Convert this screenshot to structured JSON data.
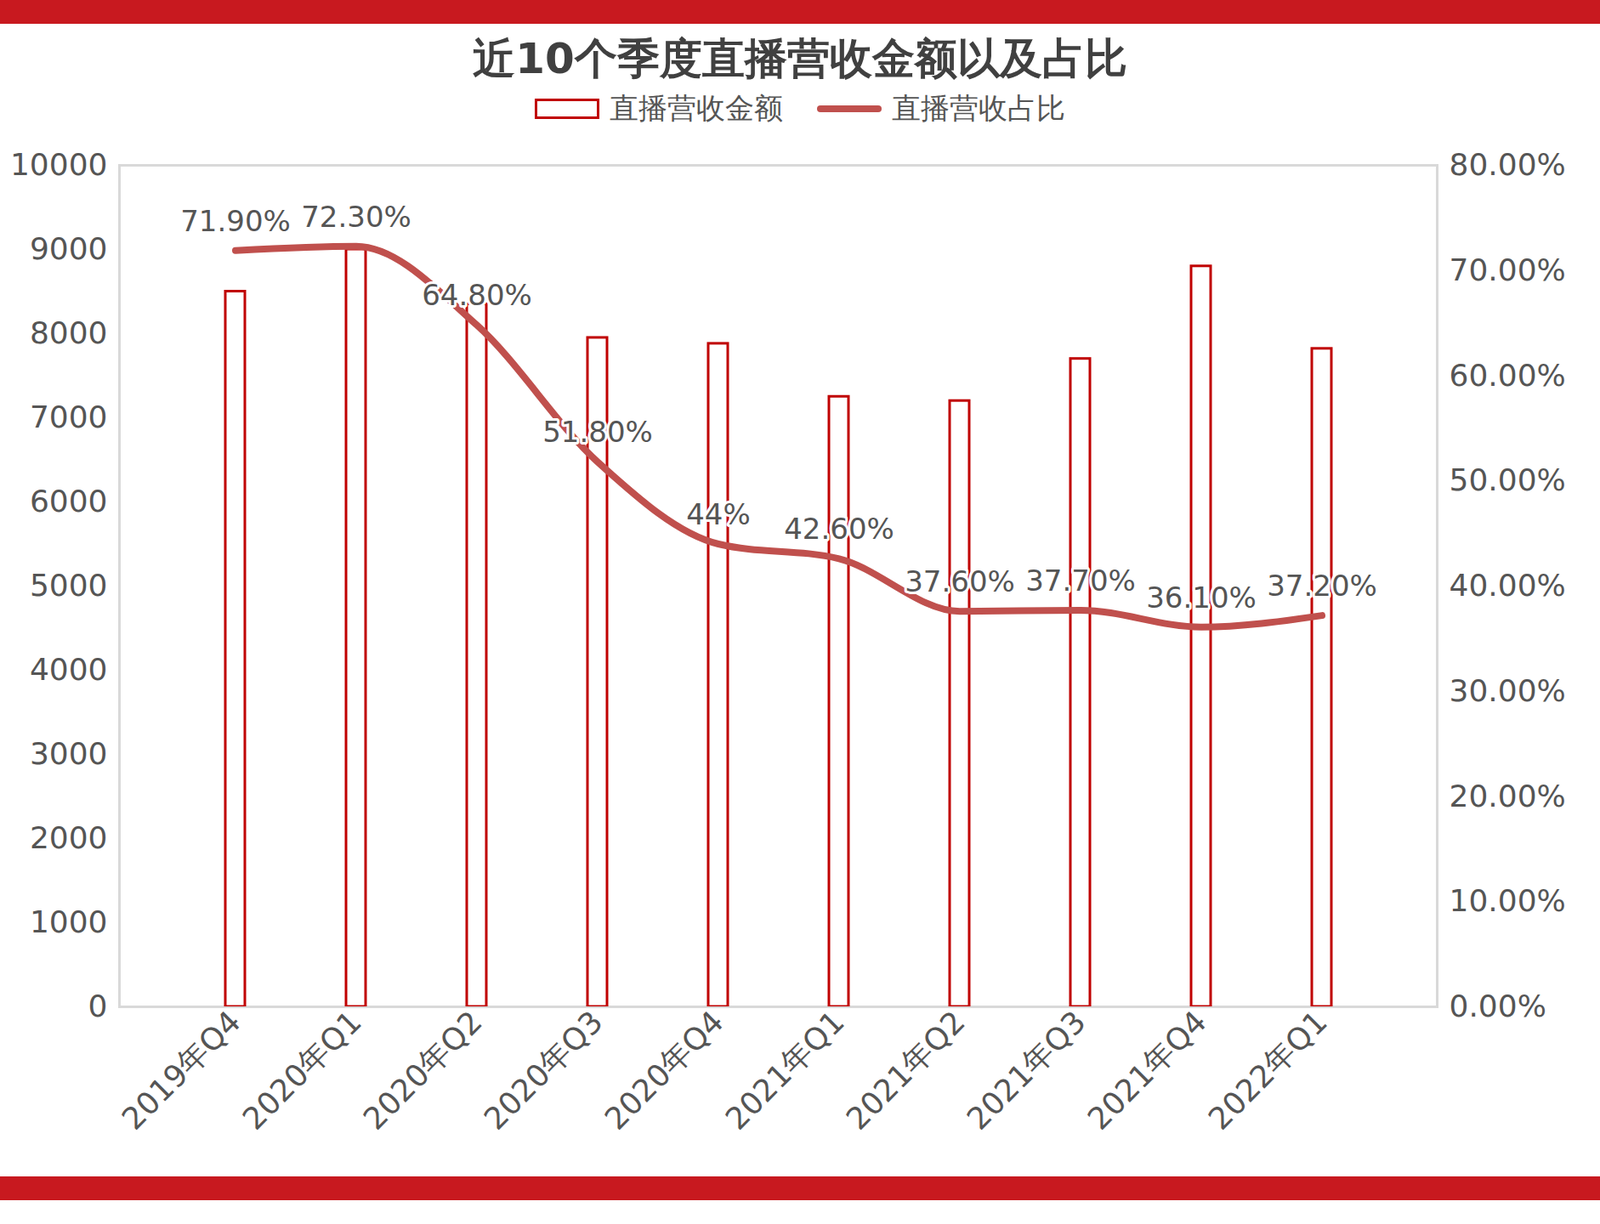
{
  "chart_data": {
    "type": "bar",
    "title": "近10个季度直播营收金额以及占比",
    "categories": [
      "2019年Q4",
      "2020年Q1",
      "2020年Q2",
      "2020年Q3",
      "2020年Q4",
      "2021年Q1",
      "2021年Q2",
      "2021年Q3",
      "2021年Q4",
      "2022年Q1"
    ],
    "series": [
      {
        "name": "直播营收金额",
        "type": "bar",
        "color": "#c00000",
        "values": [
          8500,
          9000,
          8350,
          7950,
          7880,
          7250,
          7200,
          7700,
          8800,
          7820
        ]
      },
      {
        "name": "直播营收占比",
        "type": "line",
        "color": "#c0504d",
        "axis": "y2",
        "values": [
          71.9,
          72.3,
          64.8,
          51.8,
          44,
          42.6,
          37.6,
          37.7,
          36.1,
          37.2
        ],
        "value_labels": [
          "71.90%",
          "72.30%",
          "64.80%",
          "51.80%",
          "44%",
          "42.60%",
          "37.60%",
          "37.70%",
          "36.10%",
          "37.20%"
        ]
      }
    ],
    "ylim": [
      0,
      10000
    ],
    "yticks": [
      0,
      1000,
      2000,
      3000,
      4000,
      5000,
      6000,
      7000,
      8000,
      9000,
      10000
    ],
    "y2lim": [
      0,
      80
    ],
    "y2ticks": [
      {
        "value": 0,
        "label": "0.00%"
      },
      {
        "value": 10,
        "label": "10.00%"
      },
      {
        "value": 20,
        "label": "20.00%"
      },
      {
        "value": 30,
        "label": "30.00%"
      },
      {
        "value": 40,
        "label": "40.00%"
      },
      {
        "value": 50,
        "label": "50.00%"
      },
      {
        "value": 60,
        "label": "60.00%"
      },
      {
        "value": 70,
        "label": "70.00%"
      },
      {
        "value": 80,
        "label": "80.00%"
      }
    ],
    "legend": "top",
    "data_labels": true,
    "grid": false
  }
}
